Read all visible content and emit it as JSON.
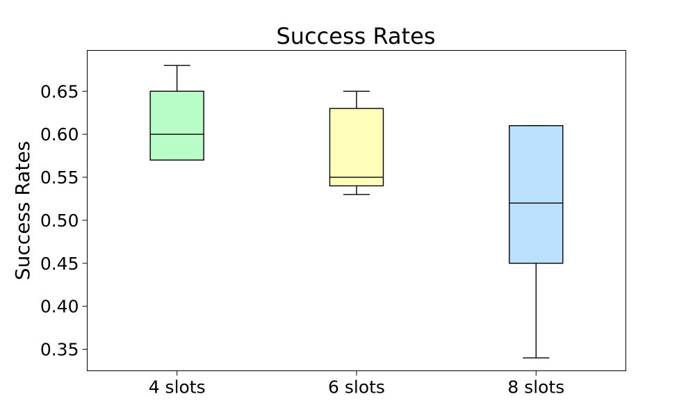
{
  "chart_data": {
    "type": "box",
    "title": "Success Rates",
    "xlabel": "",
    "ylabel": "Success Rates",
    "ylim": [
      0.325,
      0.6975
    ],
    "yticks": [
      "0.35",
      "0.40",
      "0.45",
      "0.50",
      "0.55",
      "0.60",
      "0.65"
    ],
    "grid": false,
    "categories": [
      "4 slots",
      "6 slots",
      "8 slots"
    ],
    "boxes": [
      {
        "label": "4 slots",
        "whisker_low": 0.57,
        "q1": 0.57,
        "median": 0.6,
        "q3": 0.65,
        "whisker_high": 0.68,
        "color": "#b8fcc8"
      },
      {
        "label": "6 slots",
        "whisker_low": 0.53,
        "q1": 0.54,
        "median": 0.55,
        "q3": 0.63,
        "whisker_high": 0.65,
        "color": "#ffffbb"
      },
      {
        "label": "8 slots",
        "whisker_low": 0.34,
        "q1": 0.45,
        "median": 0.52,
        "q3": 0.61,
        "whisker_high": 0.61,
        "color": "#bbe1ff"
      }
    ]
  }
}
